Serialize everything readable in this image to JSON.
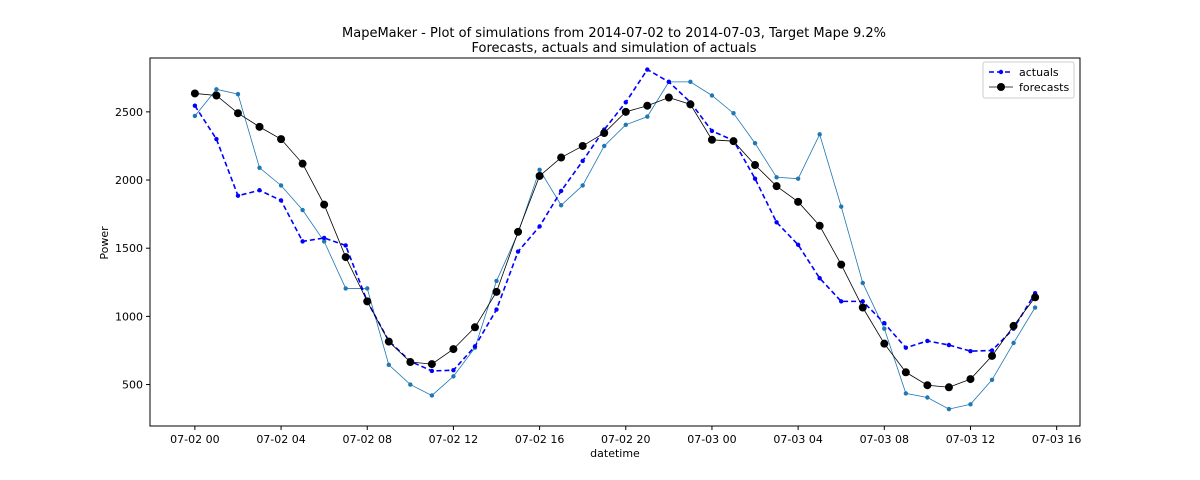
{
  "chart_data": {
    "type": "line",
    "title": "MapeMaker - Plot of simulations from 2014-07-02 to 2014-07-03, Target Mape 9.2%",
    "subtitle": "Forecasts, actuals and simulation of actuals",
    "xlabel": "datetime",
    "ylabel": "Power",
    "xlim": [
      "2014-07-01 21:55",
      "2014-07-03 17:05"
    ],
    "ylim": [
      196,
      2895
    ],
    "x_tick_labels": [
      "07-02 00",
      "07-02 04",
      "07-02 08",
      "07-02 12",
      "07-02 16",
      "07-02 20",
      "07-03 00",
      "07-03 04",
      "07-03 08",
      "07-03 12",
      "07-03 16"
    ],
    "x_tick_values": [
      "2014-07-02 00:00",
      "2014-07-02 04:00",
      "2014-07-02 08:00",
      "2014-07-02 12:00",
      "2014-07-02 16:00",
      "2014-07-02 20:00",
      "2014-07-03 00:00",
      "2014-07-03 04:00",
      "2014-07-03 08:00",
      "2014-07-03 12:00",
      "2014-07-03 16:00"
    ],
    "y_tick_labels": [
      "500",
      "1000",
      "1500",
      "2000",
      "2500"
    ],
    "y_tick_values": [
      500,
      1000,
      1500,
      2000,
      2500
    ],
    "grid": false,
    "legend_position": "top-right",
    "legend": [
      "actuals",
      "forecasts"
    ],
    "x": [
      "2014-07-02 00:00",
      "2014-07-02 01:00",
      "2014-07-02 02:00",
      "2014-07-02 03:00",
      "2014-07-02 04:00",
      "2014-07-02 05:00",
      "2014-07-02 06:00",
      "2014-07-02 07:00",
      "2014-07-02 08:00",
      "2014-07-02 09:00",
      "2014-07-02 10:00",
      "2014-07-02 11:00",
      "2014-07-02 12:00",
      "2014-07-02 13:00",
      "2014-07-02 14:00",
      "2014-07-02 15:00",
      "2014-07-02 16:00",
      "2014-07-02 17:00",
      "2014-07-02 18:00",
      "2014-07-02 19:00",
      "2014-07-02 20:00",
      "2014-07-02 21:00",
      "2014-07-02 22:00",
      "2014-07-02 23:00",
      "2014-07-03 00:00",
      "2014-07-03 01:00",
      "2014-07-03 02:00",
      "2014-07-03 03:00",
      "2014-07-03 04:00",
      "2014-07-03 05:00",
      "2014-07-03 06:00",
      "2014-07-03 07:00",
      "2014-07-03 08:00",
      "2014-07-03 09:00",
      "2014-07-03 10:00",
      "2014-07-03 11:00",
      "2014-07-03 12:00",
      "2014-07-03 13:00",
      "2014-07-03 14:00",
      "2014-07-03 15:00"
    ],
    "series": [
      {
        "name": "actuals",
        "style": "dashed-with-dots",
        "color": "#0000ff",
        "values": [
          2545,
          2300,
          1885,
          1925,
          1850,
          1550,
          1575,
          1520,
          1110,
          820,
          670,
          600,
          605,
          780,
          1050,
          1475,
          1660,
          1920,
          2140,
          2370,
          2570,
          2810,
          2720,
          2570,
          2360,
          2290,
          2010,
          1690,
          1525,
          1280,
          1110,
          1110,
          950,
          770,
          820,
          790,
          745,
          750,
          910,
          1170
        ]
      },
      {
        "name": "forecasts",
        "style": "line-with-circles",
        "color": "#000000",
        "values": [
          2635,
          2620,
          2490,
          2390,
          2300,
          2120,
          1820,
          1435,
          1110,
          815,
          665,
          650,
          760,
          920,
          1180,
          1620,
          2030,
          2165,
          2250,
          2345,
          2500,
          2545,
          2605,
          2555,
          2295,
          2285,
          2110,
          1955,
          1840,
          1665,
          1380,
          1065,
          800,
          590,
          495,
          480,
          540,
          710,
          930,
          1140
        ]
      },
      {
        "style": "thin-line-with-dots",
        "color": "#1f77b4",
        "values": [
          2470,
          2665,
          2630,
          2090,
          1960,
          1780,
          1550,
          1205,
          1205,
          645,
          500,
          420,
          560,
          770,
          1260,
          1610,
          2075,
          1815,
          1960,
          2250,
          2405,
          2465,
          2720,
          2720,
          2620,
          2490,
          2270,
          2020,
          2010,
          2335,
          1805,
          1245,
          910,
          435,
          405,
          320,
          355,
          535,
          805,
          1065
        ]
      }
    ]
  }
}
